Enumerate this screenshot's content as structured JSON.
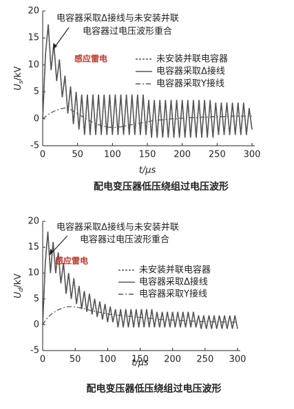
{
  "chart_data": [
    {
      "type": "line",
      "annotation_lines": [
        "电容器采取Δ接线与未安装并联",
        "电容器过电压波形重合"
      ],
      "annotation2": "感应雷电",
      "caption": "配电变压器低压绕组过电压波形",
      "x_label": "t/μs",
      "y_label": {
        "main": "U",
        "sub": "s",
        "unit": "/kV"
      },
      "xlim": [
        0,
        300
      ],
      "xticks": [
        0,
        50,
        100,
        150,
        200,
        250,
        300
      ],
      "ylim": [
        -5,
        20
      ],
      "yticks": [
        -5,
        0,
        5,
        10,
        15,
        20
      ],
      "legend": "right",
      "x": [
        0,
        4,
        8,
        12,
        16,
        20,
        24,
        28,
        32,
        36,
        40,
        44,
        48,
        52,
        56,
        60,
        64,
        68,
        72,
        76,
        80,
        84,
        88,
        92,
        96,
        100,
        104,
        108,
        112,
        116,
        120,
        124,
        128,
        132,
        136,
        140,
        144,
        148,
        152,
        156,
        160,
        164,
        168,
        172,
        176,
        180,
        184,
        188,
        192,
        196,
        200,
        204,
        208,
        212,
        216,
        220,
        224,
        228,
        232,
        236,
        240,
        244,
        248,
        252,
        256,
        260,
        264,
        268,
        272,
        276,
        280,
        284,
        288,
        292,
        296,
        300
      ],
      "series": [
        {
          "name": "未安装并联电容器",
          "color": "#555555",
          "linestyle": "dotted",
          "values": [
            0,
            12,
            17.5,
            9,
            14,
            7,
            11,
            4,
            8,
            1,
            6,
            -1,
            5,
            -2,
            4.5,
            -3,
            4.5,
            -3,
            4.5,
            -3,
            4.5,
            -3,
            4.5,
            -3,
            4.5,
            -3,
            4.5,
            -3,
            4.5,
            -3,
            4.5,
            -3,
            4.5,
            -3,
            4.5,
            -3,
            4.5,
            -3,
            3.5,
            -3.5,
            3.5,
            -3.5,
            3.5,
            -3.5,
            3.5,
            -3.5,
            3.5,
            -3.5,
            3.5,
            -3.5,
            3.5,
            -3.5,
            3.5,
            -3.5,
            3.5,
            -3.5,
            3.5,
            -3.5,
            3.5,
            -3.5,
            3.5,
            -3.5,
            3,
            -3,
            3,
            -3,
            3,
            -3,
            3,
            -3,
            3,
            -3,
            3,
            -3,
            2,
            -2
          ]
        },
        {
          "name": "电容器采取Δ接线",
          "color": "#555555",
          "linestyle": "solid",
          "values": [
            0,
            12,
            17.5,
            9,
            14,
            7,
            11,
            4,
            8,
            1,
            6,
            -1,
            5,
            -2,
            4.5,
            -3,
            4.5,
            -3,
            4.5,
            -3,
            4.5,
            -3,
            4.5,
            -3,
            4.5,
            -3,
            4.5,
            -3,
            4.5,
            -3,
            4.5,
            -3,
            4.5,
            -3,
            4.5,
            -3,
            4.5,
            -3,
            3.5,
            -3.5,
            3.5,
            -3.5,
            3.5,
            -3.5,
            3.5,
            -3.5,
            3.5,
            -3.5,
            3.5,
            -3.5,
            3.5,
            -3.5,
            3.5,
            -3.5,
            3.5,
            -3.5,
            3.5,
            -3.5,
            3.5,
            -3.5,
            3.5,
            -3.5,
            3,
            -3,
            3,
            -3,
            3,
            -3,
            3,
            -3,
            3,
            -3,
            3,
            -3,
            2,
            -2
          ]
        },
        {
          "name": "电容器采取Y接线",
          "color": "#555555",
          "linestyle": "dashdot",
          "values": [
            0,
            0.4,
            0.8,
            1.1,
            1.4,
            1.6,
            1.8,
            1.9,
            2,
            1.9,
            1.7,
            1.4,
            1.1,
            0.8,
            0.5,
            0.2,
            -0.1,
            -0.4,
            -0.7,
            -0.9,
            -1.1,
            -1.3,
            -1.4,
            -1.5,
            -1.6,
            -1.6,
            -1.6,
            -1.5,
            -1.5,
            -1.4,
            -1.3,
            -1.2,
            -1.1,
            -1,
            -0.9,
            -0.8,
            -0.7,
            -0.6,
            -0.5,
            -0.4,
            -0.3,
            -0.3,
            -0.2,
            -0.2,
            -0.1,
            -0.1,
            0,
            0,
            0,
            0.1,
            0.1,
            0.1,
            0.2,
            0.2,
            0.2,
            0.2,
            0.3,
            0.3,
            0.3,
            0.3,
            0.3,
            0.4,
            0.4,
            0.4,
            0.4,
            0.4,
            0.4,
            0.5,
            0.5,
            0.5,
            0.5,
            0.5,
            0.5,
            0.5,
            0.5,
            0.5
          ]
        }
      ]
    },
    {
      "type": "line",
      "annotation_lines": [
        "电容器采取Δ接线与未安装并联",
        "电容器过电压波形重合"
      ],
      "annotation2": "感应雷电",
      "caption": "配电变压器低压绕组过电压波形",
      "x_label": "t/μs",
      "y_label": {
        "main": "U",
        "sub": "d",
        "unit": "/kV"
      },
      "xlim": [
        0,
        300
      ],
      "xticks": [
        0,
        50,
        100,
        150,
        200,
        250,
        300
      ],
      "ylim": [
        -5,
        20
      ],
      "yticks": [
        -5,
        0,
        5,
        10,
        15,
        20
      ],
      "legend": "right",
      "x": [
        0,
        4,
        8,
        12,
        16,
        20,
        24,
        28,
        32,
        36,
        40,
        44,
        48,
        52,
        56,
        60,
        64,
        68,
        72,
        76,
        80,
        84,
        88,
        92,
        96,
        100,
        104,
        108,
        112,
        116,
        120,
        124,
        128,
        132,
        136,
        140,
        144,
        148,
        152,
        156,
        160,
        164,
        168,
        172,
        176,
        180,
        184,
        188,
        192,
        196,
        200,
        204,
        208,
        212,
        216,
        220,
        224,
        228,
        232,
        236,
        240,
        244,
        248,
        252,
        256,
        260,
        264,
        268,
        272,
        276,
        280,
        284,
        288,
        292,
        296,
        300
      ],
      "series": [
        {
          "name": "未安装并联电容器",
          "color": "#555555",
          "linestyle": "dotted",
          "values": [
            0,
            12,
            18,
            10,
            16,
            10,
            14,
            8,
            12,
            6,
            10,
            5,
            9,
            4,
            7.5,
            3,
            6.5,
            2.5,
            6,
            2,
            5,
            1.5,
            4.5,
            1,
            4,
            0.5,
            3.5,
            0.5,
            3,
            -0.5,
            3,
            -0.5,
            3,
            -0.5,
            3,
            -0.5,
            3,
            -0.5,
            3,
            -0.5,
            3,
            -0.5,
            3,
            -0.5,
            2.5,
            -0.5,
            2.5,
            -0.5,
            2.5,
            -0.5,
            2.5,
            -0.5,
            2.5,
            -0.5,
            2.5,
            -0.5,
            2.5,
            -0.5,
            2.5,
            -0.5,
            1.8,
            -0.8,
            1.8,
            -0.8,
            1.8,
            -0.8,
            1.8,
            -0.8,
            1.8,
            -0.8,
            1.8,
            -0.8,
            1.8,
            -0.8,
            1.8,
            -0.8
          ]
        },
        {
          "name": "电容器采取Δ接线",
          "color": "#555555",
          "linestyle": "solid",
          "values": [
            0,
            12,
            18,
            10,
            16,
            10,
            14,
            8,
            12,
            6,
            10,
            5,
            9,
            4,
            7.5,
            3,
            6.5,
            2.5,
            6,
            2,
            5,
            1.5,
            4.5,
            1,
            4,
            0.5,
            3.5,
            0.5,
            3,
            -0.5,
            3,
            -0.5,
            3,
            -0.5,
            3,
            -0.5,
            3,
            -0.5,
            3,
            -0.5,
            3,
            -0.5,
            3,
            -0.5,
            2.5,
            -0.5,
            2.5,
            -0.5,
            2.5,
            -0.5,
            2.5,
            -0.5,
            2.5,
            -0.5,
            2.5,
            -0.5,
            2.5,
            -0.5,
            2.5,
            -0.5,
            1.8,
            -0.8,
            1.8,
            -0.8,
            1.8,
            -0.8,
            1.8,
            -0.8,
            1.8,
            -0.8,
            1.8,
            -0.8,
            1.8,
            -0.8,
            1.8,
            -0.8
          ]
        },
        {
          "name": "电容器采取Y接线",
          "color": "#555555",
          "linestyle": "dashdot",
          "values": [
            0,
            0.8,
            1.4,
            1.9,
            2.3,
            2.6,
            2.9,
            3.1,
            3.3,
            3.4,
            3.5,
            3.5,
            3.5,
            3.4,
            3.3,
            3.2,
            3.1,
            3,
            2.8,
            2.7,
            2.6,
            2.5,
            2.4,
            2.3,
            2.2,
            2.1,
            2,
            1.95,
            1.9,
            1.85,
            1.8,
            1.75,
            1.7,
            1.65,
            1.6,
            1.55,
            1.5,
            1.45,
            1.4,
            1.35,
            1.3,
            1.25,
            1.2,
            1.15,
            1.1,
            1.05,
            1,
            0.98,
            0.95,
            0.92,
            0.9,
            0.88,
            0.85,
            0.82,
            0.8,
            0.78,
            0.75,
            0.72,
            0.7,
            0.68,
            0.65,
            0.63,
            0.6,
            0.6,
            0.58,
            0.57,
            0.56,
            0.55,
            0.54,
            0.53,
            0.52,
            0.51,
            0.5,
            0.5,
            0.5,
            0.5
          ]
        }
      ]
    }
  ]
}
